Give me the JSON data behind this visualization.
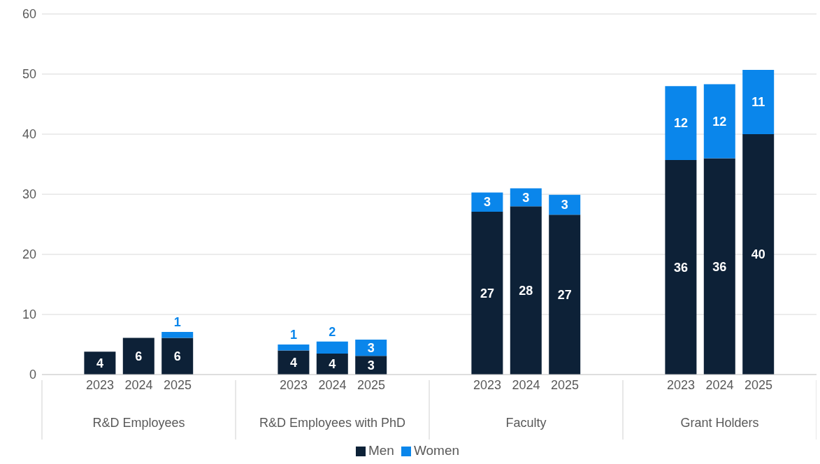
{
  "chart_data": {
    "type": "bar",
    "stacked": true,
    "categories": [
      "2023",
      "2024",
      "2025",
      "2023",
      "2024",
      "2025",
      "2023",
      "2024",
      "2025",
      "2023",
      "2024",
      "2025"
    ],
    "annotations": [
      "R&D Employees",
      "R&D Employees with PhD",
      "Faculty",
      "Grant Holders"
    ],
    "series": [
      {
        "name": "Men",
        "color": "#0d2137",
        "values": [
          3.8,
          6.1,
          6.1,
          4.0,
          3.5,
          3.1,
          27.1,
          28.0,
          26.6,
          35.7,
          36.0,
          40.0
        ],
        "value_labels": [
          "4",
          "6",
          "6",
          "4",
          "4",
          "3",
          "27",
          "28",
          "27",
          "36",
          "36",
          "40"
        ]
      },
      {
        "name": "Women",
        "color": "#0a86eb",
        "values": [
          null,
          null,
          1.0,
          1.0,
          2.0,
          2.7,
          3.2,
          3.0,
          3.3,
          12.3,
          12.3,
          10.7
        ],
        "value_labels": [
          null,
          null,
          "1",
          "1",
          "2",
          "3",
          "3",
          "3",
          "3",
          "12",
          "12",
          "11"
        ]
      }
    ],
    "ylim": [
      0,
      60
    ],
    "yticks": [
      0,
      10,
      20,
      30,
      40,
      50,
      60
    ],
    "grid": "y",
    "legend": "bottom"
  }
}
